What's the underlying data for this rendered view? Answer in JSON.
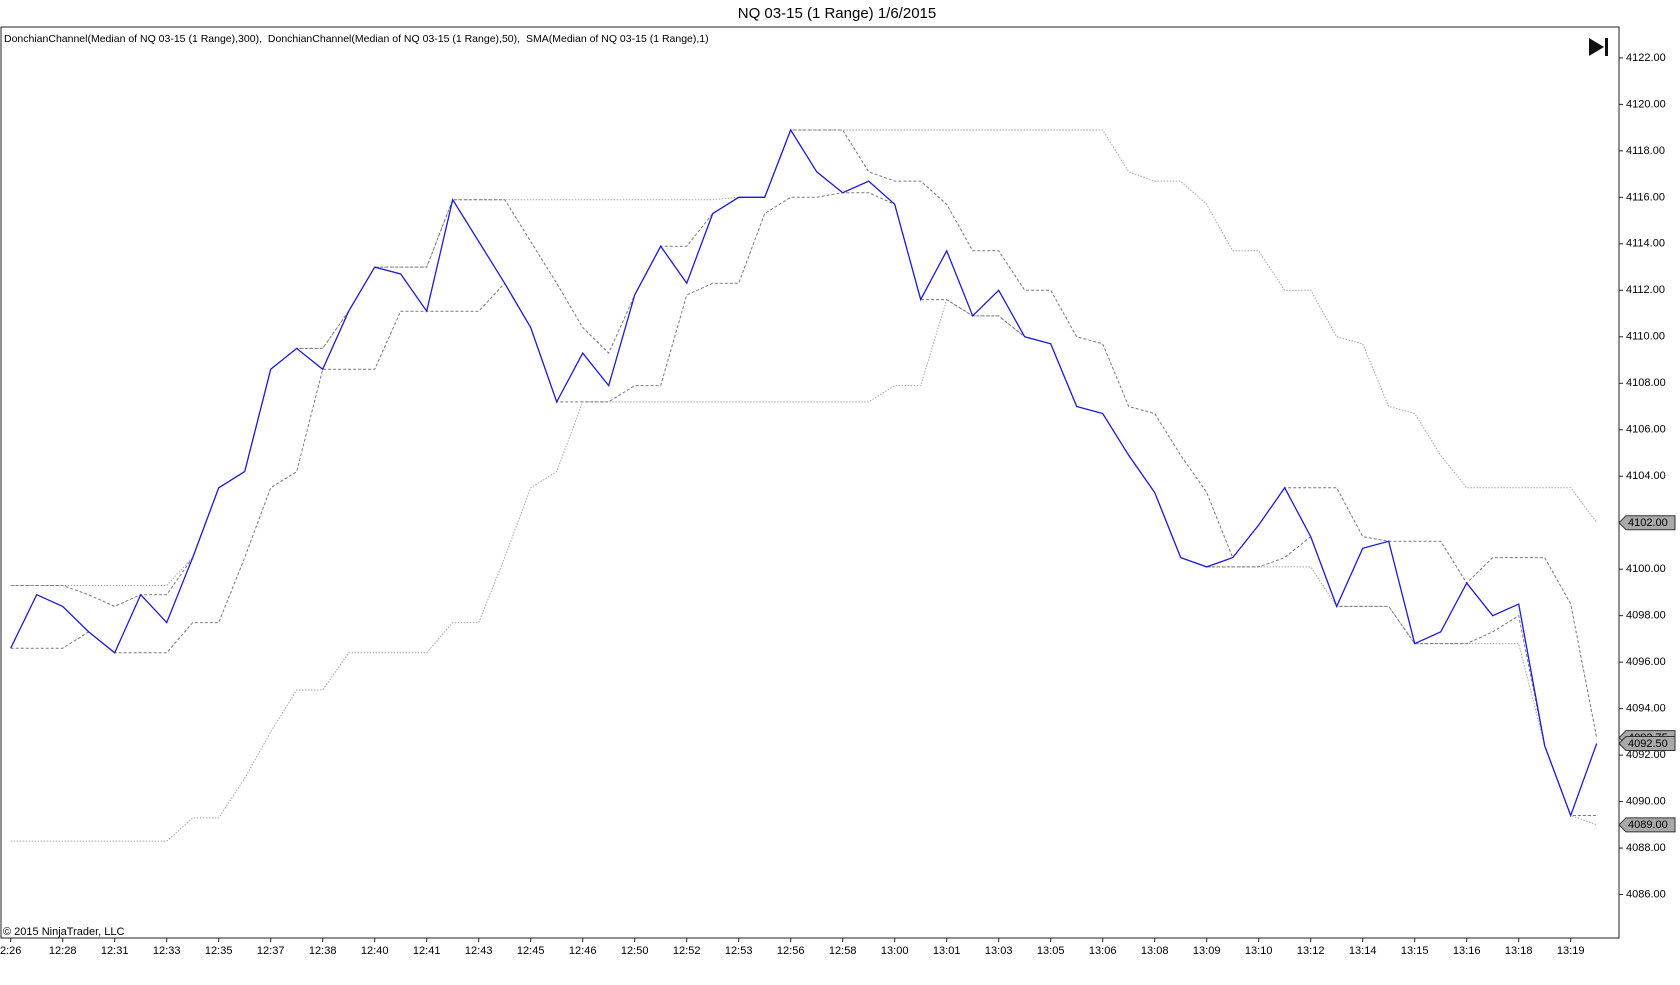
{
  "chart_data": {
    "type": "line",
    "title": "NQ 03-15 (1 Range)  1/6/2015",
    "copyright": "© 2015 NinjaTrader, LLC",
    "categories": [
      "2:26",
      null,
      "12:28",
      null,
      "12:31",
      null,
      "12:33",
      null,
      "12:35",
      null,
      "12:37",
      null,
      "12:38",
      null,
      "12:40",
      null,
      "12:41",
      null,
      "12:43",
      null,
      "12:45",
      null,
      "12:46",
      null,
      "12:50",
      null,
      "12:52",
      null,
      "12:53",
      null,
      "12:56",
      null,
      "12:58",
      null,
      "13:00",
      null,
      "13:01",
      null,
      "13:03",
      null,
      "13:05",
      null,
      "13:06",
      null,
      "13:08",
      null,
      "13:09",
      null,
      "13:10",
      null,
      "13:12",
      null,
      "13:14",
      null,
      "13:15",
      null,
      "13:16",
      null,
      "13:18",
      null,
      "13:19",
      null
    ],
    "series": [
      {
        "name": "DonchianChannel(Median of NQ 03-15 (1 Range),300),",
        "color": "#a8a8a8",
        "dash": "1.5 1.5",
        "upper": [
          4099.3,
          4099.3,
          4099.3,
          4099.3,
          4099.3,
          4099.3,
          4099.3,
          4100.5,
          4103.5,
          4104.2,
          4108.6,
          4109.5,
          4109.5,
          4111.1,
          4113,
          4113,
          4113,
          4115.9,
          4115.9,
          4115.9,
          4115.9,
          4115.9,
          4115.9,
          4115.9,
          4115.9,
          4115.9,
          4115.9,
          4115.9,
          4116,
          4116,
          4118.9,
          4118.9,
          4118.9,
          4118.9,
          4118.9,
          4118.9,
          4118.9,
          4118.9,
          4118.9,
          4118.9,
          4118.9,
          4118.9,
          4118.9,
          4117.1,
          4116.7,
          4116.7,
          4115.7,
          4113.7,
          4113.7,
          4112,
          4112,
          4110,
          4109.7,
          4107,
          4106.7,
          4104.9,
          4103.5,
          4103.5,
          4103.5,
          4103.5,
          4103.5,
          4102
        ],
        "lower": [
          4088.3,
          4088.3,
          4088.3,
          4088.3,
          4088.3,
          4088.3,
          4088.3,
          4089.3,
          4089.3,
          4091,
          4093,
          4094.8,
          4094.8,
          4096.4,
          4096.4,
          4096.4,
          4096.4,
          4097.7,
          4097.7,
          4100.5,
          4103.5,
          4104.2,
          4107.2,
          4107.2,
          4107.2,
          4107.2,
          4107.2,
          4107.2,
          4107.2,
          4107.2,
          4107.2,
          4107.2,
          4107.2,
          4107.2,
          4107.9,
          4107.9,
          4111.6,
          4110.9,
          4110.9,
          4110,
          4109.7,
          4107,
          4106.7,
          4104.9,
          4103.3,
          4100.5,
          4100.1,
          4100.1,
          4100.1,
          4100.1,
          4100.1,
          4098.4,
          4098.4,
          4098.4,
          4096.8,
          4096.8,
          4096.8,
          4096.8,
          4096.8,
          4092.4,
          4089.4,
          4089
        ]
      },
      {
        "name": "DonchianChannel(Median of NQ 03-15 (1 Range),50),",
        "color": "#7a7a7a",
        "dash": "3 2",
        "upper": [
          4099.3,
          4099.3,
          4099.3,
          4098.9,
          4098.4,
          4098.9,
          4098.9,
          4100.5,
          4103.5,
          4104.2,
          4108.6,
          4109.5,
          4109.5,
          4111.1,
          4113,
          4113,
          4113,
          4115.9,
          4115.9,
          4115.9,
          4114.1,
          4112.3,
          4110.4,
          4109.3,
          4111.8,
          4113.9,
          4113.9,
          4115.3,
          4116,
          4116,
          4118.9,
          4118.9,
          4118.9,
          4117.1,
          4116.7,
          4116.7,
          4115.7,
          4113.7,
          4113.7,
          4112,
          4112,
          4110,
          4109.7,
          4107,
          4106.7,
          4104.9,
          4103.3,
          4100.5,
          4101.9,
          4103.5,
          4103.5,
          4103.5,
          4101.4,
          4101.2,
          4101.2,
          4101.2,
          4099.4,
          4100.5,
          4100.5,
          4100.5,
          4098.5,
          4092.75
        ],
        "lower": [
          4096.6,
          4096.6,
          4096.6,
          4097.3,
          4096.4,
          4096.4,
          4096.4,
          4097.7,
          4097.7,
          4100.5,
          4103.5,
          4104.2,
          4108.6,
          4108.6,
          4108.6,
          4111.1,
          4111.1,
          4111.1,
          4111.1,
          4112.3,
          4110.4,
          4107.2,
          4107.2,
          4107.2,
          4107.9,
          4107.9,
          4111.8,
          4112.3,
          4112.3,
          4115.3,
          4116,
          4116,
          4116.2,
          4116.2,
          4115.7,
          4111.6,
          4111.6,
          4110.9,
          4110.9,
          4110,
          4109.7,
          4107,
          4106.7,
          4104.9,
          4103.3,
          4100.5,
          4100.1,
          4100.1,
          4100.1,
          4100.5,
          4101.4,
          4098.4,
          4098.4,
          4098.4,
          4096.8,
          4096.8,
          4096.8,
          4097.3,
          4098,
          4092.4,
          4089.4,
          4089.4
        ]
      },
      {
        "name": "SMA(Median of NQ 03-15 (1 Range),1)",
        "color": "#1c1cd8",
        "values": [
          4096.6,
          4098.9,
          4098.4,
          4097.3,
          4096.4,
          4098.9,
          4097.7,
          4100.5,
          4103.5,
          4104.2,
          4108.6,
          4109.5,
          4108.6,
          4111.1,
          4113,
          4112.7,
          4111.1,
          4115.9,
          4114.1,
          4112.3,
          4110.4,
          4107.2,
          4109.3,
          4107.9,
          4111.8,
          4113.9,
          4112.3,
          4115.3,
          4116,
          4116,
          4118.9,
          4117.1,
          4116.2,
          4116.7,
          4115.7,
          4111.6,
          4113.7,
          4110.9,
          4112,
          4110,
          4109.7,
          4107,
          4106.7,
          4104.9,
          4103.3,
          4100.5,
          4100.1,
          4100.5,
          4101.9,
          4103.5,
          4101.4,
          4098.4,
          4100.9,
          4101.2,
          4096.8,
          4097.3,
          4099.4,
          4098,
          4098.5,
          4092.4,
          4089.4,
          4092.5
        ]
      }
    ],
    "ylim": [
      4084.13,
      4123.33
    ],
    "yticks": [
      {
        "value": 4086,
        "label": "4086.00"
      },
      {
        "value": 4088,
        "label": "4088.00"
      },
      {
        "value": 4090,
        "label": "4090.00"
      },
      {
        "value": 4092,
        "label": "4092.00"
      },
      {
        "value": 4094,
        "label": "4094.00"
      },
      {
        "value": 4096,
        "label": "4096.00"
      },
      {
        "value": 4098,
        "label": "4098.00"
      },
      {
        "value": 4100,
        "label": "4100.00"
      },
      {
        "value": 4102,
        "label": "4102.00"
      },
      {
        "value": 4104,
        "label": "4104.00"
      },
      {
        "value": 4106,
        "label": "4106.00"
      },
      {
        "value": 4108,
        "label": "4108.00"
      },
      {
        "value": 4110,
        "label": "4110.00"
      },
      {
        "value": 4112,
        "label": "4112.00"
      },
      {
        "value": 4114,
        "label": "4114.00"
      },
      {
        "value": 4116,
        "label": "4116.00"
      },
      {
        "value": 4118,
        "label": "4118.00"
      },
      {
        "value": 4120,
        "label": "4120.00"
      },
      {
        "value": 4122,
        "label": "4122.00"
      }
    ],
    "price_markers": [
      {
        "value": 4102,
        "label": "4102.00"
      },
      {
        "value": 4092.75,
        "label": "4092.75"
      },
      {
        "value": 4092.5,
        "label": "4092.50"
      },
      {
        "value": 4089,
        "label": "4089.00"
      }
    ],
    "grid": false
  }
}
